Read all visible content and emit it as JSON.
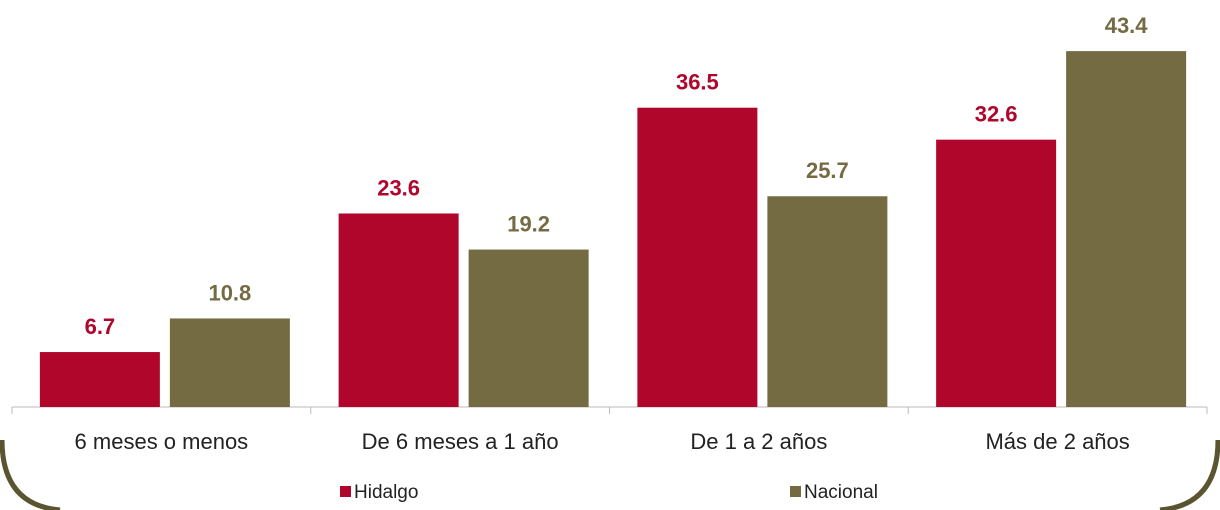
{
  "chart_data": {
    "type": "bar",
    "categories": [
      "6 meses o menos",
      "De 6 meses a 1 año",
      "De 1 a 2 años",
      "Más de 2 años"
    ],
    "series": [
      {
        "name": "Hidalgo",
        "color": "#b0062c",
        "values": [
          6.7,
          23.6,
          36.5,
          32.6
        ]
      },
      {
        "name": "Nacional",
        "color": "#746b42",
        "values": [
          10.8,
          19.2,
          25.7,
          43.4
        ]
      }
    ],
    "ylim": [
      0,
      50
    ]
  }
}
